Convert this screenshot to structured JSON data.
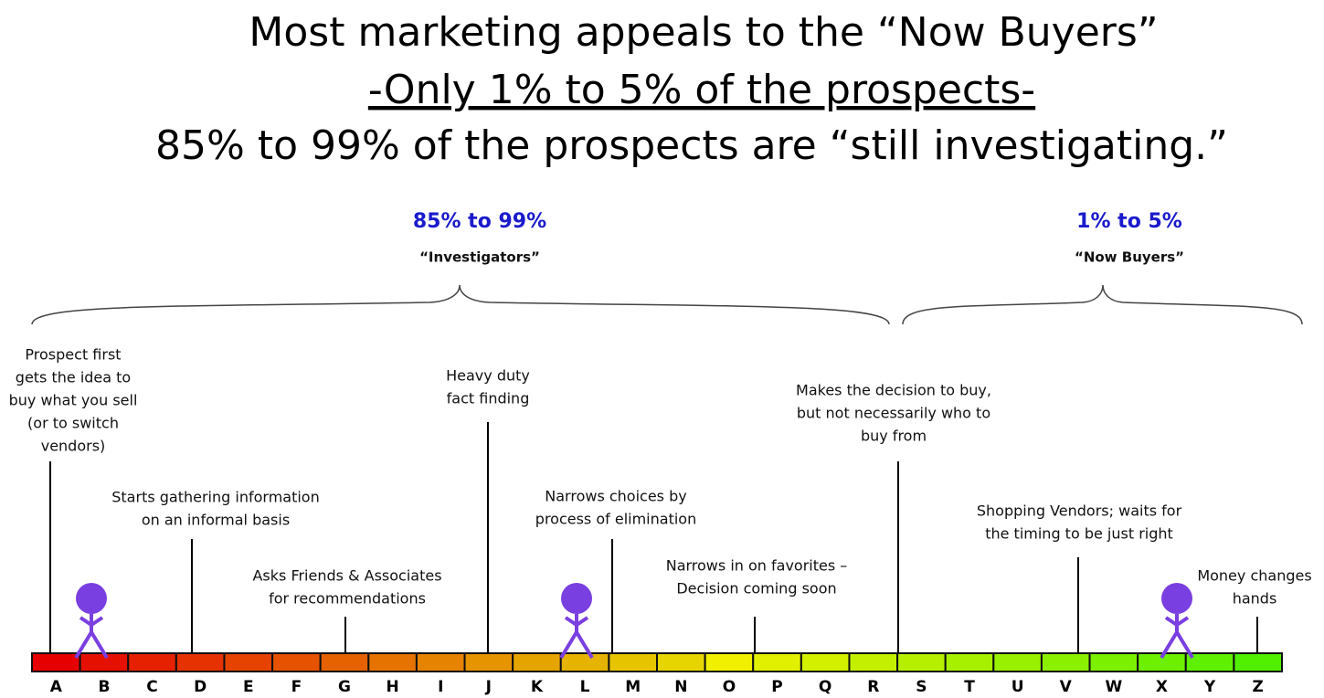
{
  "title": {
    "line1": "Most marketing appeals to the “Now Buyers”",
    "line2": "-Only 1% to 5% of the prospects-",
    "line3": "85% to 99% of the prospects are “still investigating.”"
  },
  "groups": [
    {
      "percent": "85% to 99%",
      "label": "“Investigators”"
    },
    {
      "percent": "1% to 5%",
      "label": "“Now Buyers”"
    }
  ],
  "stages": [
    {
      "lines": [
        "Prospect first",
        "gets the idea to",
        "buy what you sell",
        "(or to switch",
        "vendors)"
      ]
    },
    {
      "lines": [
        "Starts gathering information",
        "on an informal basis"
      ]
    },
    {
      "lines": [
        "Asks Friends & Associates",
        "for recommendations"
      ]
    },
    {
      "lines": [
        "Heavy duty",
        "fact finding"
      ]
    },
    {
      "lines": [
        "Narrows choices by",
        "process of elimination"
      ]
    },
    {
      "lines": [
        "Narrows in on favorites –",
        "Decision coming soon"
      ]
    },
    {
      "lines": [
        "Makes the decision to buy,",
        "but not necessarily who to",
        "buy from"
      ]
    },
    {
      "lines": [
        "Shopping Vendors; waits for",
        "the timing to be just right"
      ]
    },
    {
      "lines": [
        "Money changes",
        "hands"
      ]
    }
  ],
  "letters": [
    "A",
    "B",
    "C",
    "D",
    "E",
    "F",
    "G",
    "H",
    "I",
    "J",
    "K",
    "L",
    "M",
    "N",
    "O",
    "P",
    "Q",
    "R",
    "S",
    "T",
    "U",
    "V",
    "W",
    "X",
    "Y",
    "Z"
  ]
}
